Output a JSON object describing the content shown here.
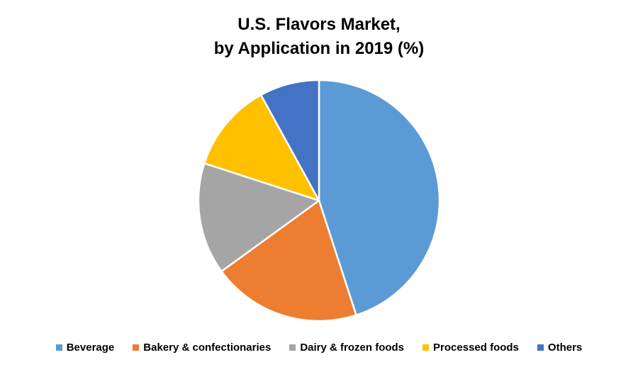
{
  "chart_data": {
    "type": "pie",
    "title": "U.S. Flavors Market, by Application in 2019 (%)",
    "title_lines": [
      "U.S. Flavors Market,",
      "by Application in 2019 (%)"
    ],
    "categories": [
      "Beverage",
      "Bakery & confectionaries",
      "Dairy & frozen foods",
      "Processed foods",
      "Others"
    ],
    "values": [
      45,
      20,
      15,
      12,
      8
    ],
    "colors": [
      "#5B9BD5",
      "#ED7D31",
      "#A5A5A5",
      "#FFC000",
      "#4472C4"
    ],
    "legend_position": "bottom",
    "start_angle_deg": 0,
    "direction": "clockwise"
  }
}
